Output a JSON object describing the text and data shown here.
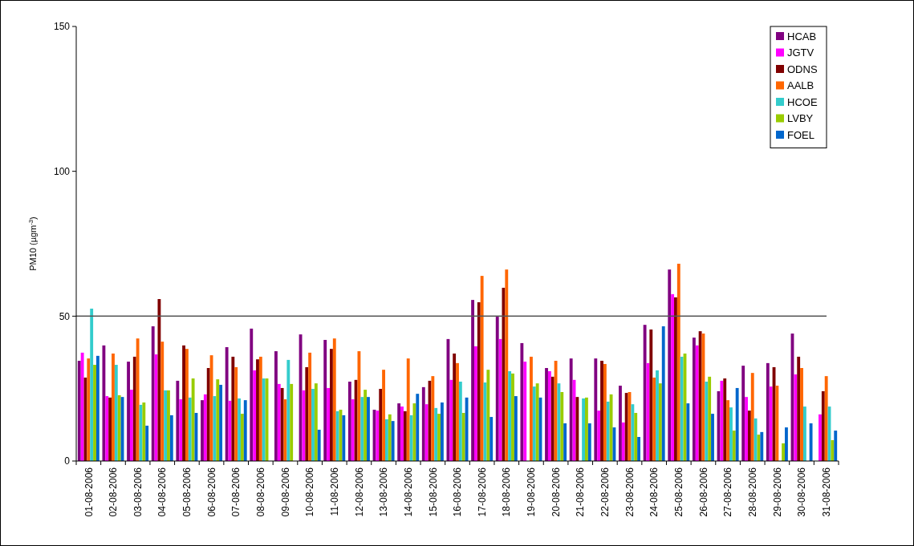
{
  "chart_data": {
    "type": "bar",
    "ylabel": "PM10 (µgm$^{-3}$)",
    "ylim": [
      0,
      150
    ],
    "yticks": [
      0,
      50,
      100,
      150
    ],
    "legend": "top right",
    "categories": [
      "01-08-2006",
      "02-08-2006",
      "03-08-2006",
      "04-08-2006",
      "05-08-2006",
      "06-08-2006",
      "07-08-2006",
      "08-08-2006",
      "09-08-2006",
      "10-08-2006",
      "11-08-2006",
      "12-08-2006",
      "13-08-2006",
      "14-08-2006",
      "15-08-2006",
      "16-08-2006",
      "17-08-2006",
      "18-08-2006",
      "19-08-2006",
      "20-08-2006",
      "21-08-2006",
      "22-08-2006",
      "23-08-2006",
      "24-08-2006",
      "25-08-2006",
      "26-08-2006",
      "27-08-2006",
      "28-08-2006",
      "29-08-2006",
      "30-08-2006",
      "31-08-2006"
    ],
    "ref_lines": [
      {
        "axis": "y",
        "value": 50,
        "color": "#555555"
      }
    ],
    "series": [
      {
        "name": "HCAB",
        "color": "#800080",
        "values": [
          34.6,
          39.9,
          34.3,
          46.5,
          27.7,
          21.0,
          39.3,
          45.7,
          37.9,
          43.7,
          41.8,
          27.4,
          17.7,
          19.9,
          25.5,
          42.1,
          55.6,
          49.8,
          40.7,
          32.1,
          35.4,
          35.4,
          26.0,
          47.0,
          66.1,
          42.6,
          24.1,
          32.9,
          33.8,
          44.0,
          null
        ]
      },
      {
        "name": "JGTV",
        "color": "#ff00ff",
        "values": [
          37.4,
          22.4,
          24.6,
          36.8,
          21.3,
          23.0,
          20.8,
          31.3,
          26.6,
          24.4,
          25.2,
          21.3,
          17.4,
          18.8,
          19.6,
          28.0,
          39.6,
          42.1,
          34.3,
          31.0,
          28.0,
          17.4,
          13.3,
          33.8,
          57.6,
          39.9,
          27.7,
          22.1,
          25.7,
          29.9,
          16.1
        ]
      },
      {
        "name": "ODNS",
        "color": "#800000",
        "values": [
          28.8,
          21.9,
          36.0,
          55.9,
          39.9,
          32.1,
          36.0,
          35.1,
          25.2,
          32.4,
          38.7,
          28.0,
          24.9,
          17.2,
          27.7,
          37.1,
          54.8,
          59.8,
          null,
          29.1,
          22.1,
          34.6,
          23.5,
          45.4,
          56.5,
          44.8,
          28.5,
          17.4,
          32.4,
          36.0,
          24.1
        ]
      },
      {
        "name": "AALB",
        "color": "#ff6600",
        "values": [
          35.4,
          37.1,
          42.3,
          41.2,
          38.7,
          36.5,
          32.4,
          36.0,
          21.3,
          37.4,
          42.3,
          37.9,
          31.5,
          35.4,
          29.3,
          33.8,
          63.9,
          66.1,
          36.0,
          34.6,
          null,
          33.5,
          23.8,
          28.8,
          68.1,
          44.0,
          21.0,
          30.4,
          26.0,
          32.1,
          29.3
        ]
      },
      {
        "name": "HCOE",
        "color": "#33cccc",
        "values": [
          52.6,
          33.2,
          19.4,
          24.4,
          21.9,
          22.4,
          21.6,
          28.5,
          34.9,
          24.9,
          17.2,
          22.1,
          14.4,
          15.8,
          18.3,
          27.4,
          27.1,
          31.0,
          25.7,
          26.8,
          21.6,
          20.5,
          19.6,
          31.3,
          36.0,
          27.4,
          18.5,
          14.7,
          null,
          18.8,
          18.8
        ]
      },
      {
        "name": "LVBY",
        "color": "#99cc00",
        "values": [
          33.2,
          22.7,
          20.2,
          24.4,
          28.5,
          28.2,
          16.3,
          28.5,
          26.6,
          26.8,
          17.7,
          24.6,
          16.1,
          19.9,
          16.3,
          16.6,
          31.5,
          30.2,
          26.8,
          23.8,
          21.9,
          23.0,
          16.6,
          26.8,
          37.1,
          29.1,
          10.5,
          9.1,
          6.1,
          null,
          7.2
        ]
      },
      {
        "name": "FOEL",
        "color": "#0066cc",
        "values": [
          36.3,
          22.1,
          12.2,
          15.8,
          16.6,
          26.3,
          21.0,
          null,
          null,
          10.8,
          15.8,
          22.1,
          13.8,
          23.2,
          20.2,
          21.9,
          15.2,
          22.4,
          21.9,
          13.0,
          13.0,
          11.6,
          8.3,
          46.5,
          19.9,
          16.3,
          25.2,
          10.0,
          11.6,
          13.0,
          10.5
        ]
      }
    ]
  }
}
